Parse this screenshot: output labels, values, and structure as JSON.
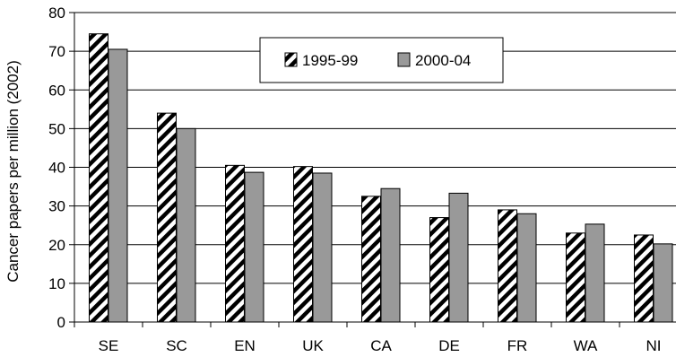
{
  "chart_data": {
    "type": "bar",
    "title": "",
    "xlabel": "",
    "ylabel": "Cancer papers per million (2002)",
    "ylim": [
      0,
      80
    ],
    "yticks": [
      0,
      10,
      20,
      30,
      40,
      50,
      60,
      70,
      80
    ],
    "grid": true,
    "legend_position": "top-center",
    "categories": [
      "SE",
      "SC",
      "EN",
      "UK",
      "CA",
      "DE",
      "FR",
      "WA",
      "NI"
    ],
    "series": [
      {
        "name": "1995-99",
        "pattern": "diagonal-hatch",
        "color": "#000000",
        "values": [
          74.5,
          54,
          40.5,
          40.2,
          32.5,
          27,
          29,
          23,
          22.5
        ]
      },
      {
        "name": "2000-04",
        "pattern": "solid",
        "color": "#999999",
        "values": [
          70.5,
          50,
          38.7,
          38.5,
          34.5,
          33.3,
          28,
          25.3,
          20.2
        ]
      }
    ]
  }
}
